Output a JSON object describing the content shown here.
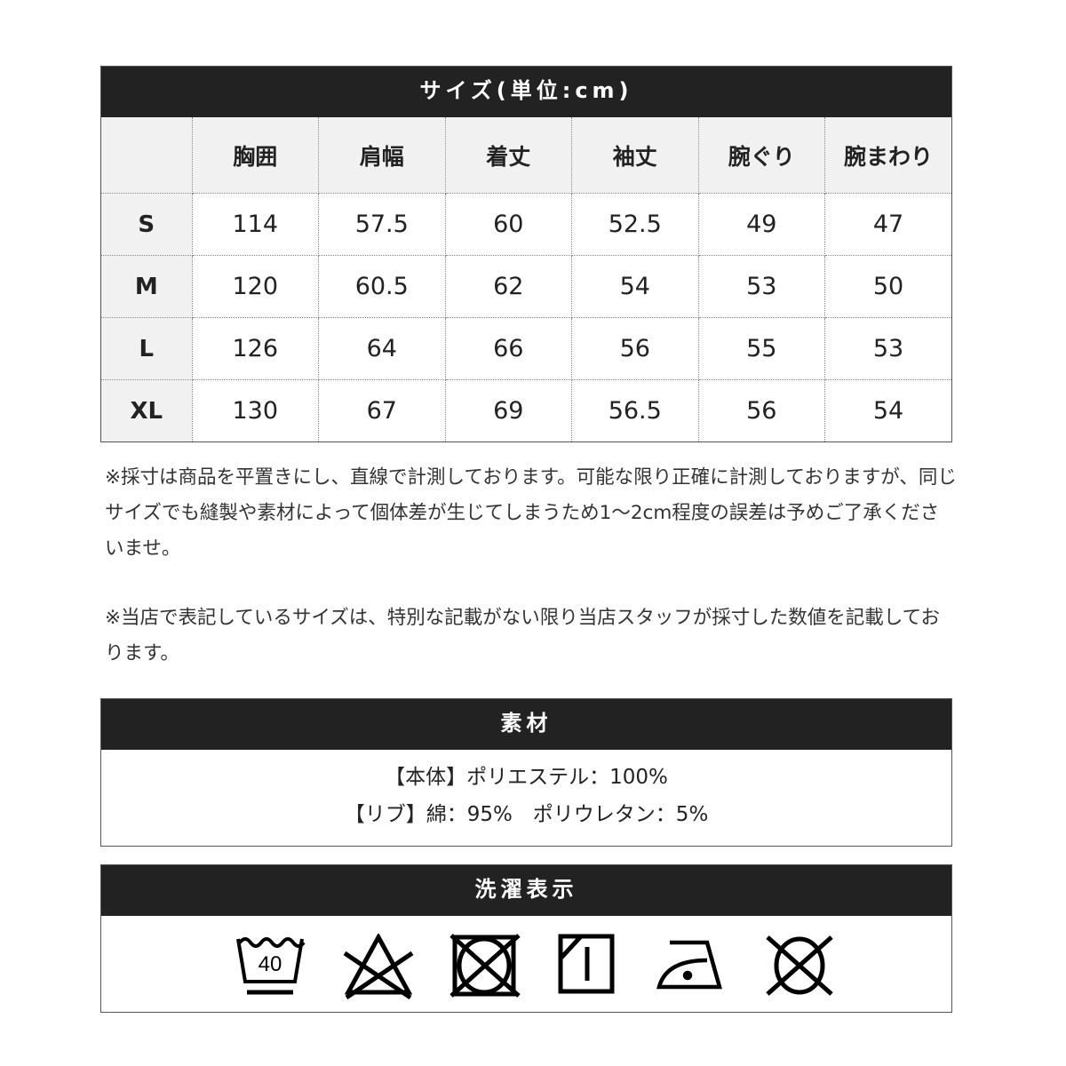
{
  "size_table": {
    "title": "サイズ(単位:cm)",
    "columns": [
      "",
      "胸囲",
      "肩幅",
      "着丈",
      "袖丈",
      "腕ぐり",
      "腕まわり"
    ],
    "rows": [
      [
        "S",
        "114",
        "57.5",
        "60",
        "52.5",
        "49",
        "47"
      ],
      [
        "M",
        "120",
        "60.5",
        "62",
        "54",
        "53",
        "50"
      ],
      [
        "L",
        "126",
        "64",
        "66",
        "56",
        "55",
        "53"
      ],
      [
        "XL",
        "130",
        "67",
        "69",
        "56.5",
        "56",
        "54"
      ]
    ]
  },
  "notes": [
    "※採寸は商品を平置きにし、直線で計測しております。可能な限り正確に計測しておりますが、同じサイズでも縫製や素材によって個体差が生じてしまうため1～2cm程度の誤差は予めご了承くださいませ。",
    "※当店で表記しているサイズは、特別な記載がない限り当店スタッフが採寸した数値を記載しております。"
  ],
  "material": {
    "title": "素材",
    "lines": [
      "【本体】ポリエステル：100%",
      "【リブ】綿：95%　ポリウレタン：5%"
    ]
  },
  "care": {
    "title": "洗濯表示",
    "icons": [
      {
        "name": "wash-40-gentle-icon",
        "label": "40"
      },
      {
        "name": "no-bleach-icon"
      },
      {
        "name": "no-tumble-dry-icon"
      },
      {
        "name": "line-dry-shade-icon"
      },
      {
        "name": "iron-low-icon"
      },
      {
        "name": "no-dry-clean-icon"
      }
    ]
  }
}
